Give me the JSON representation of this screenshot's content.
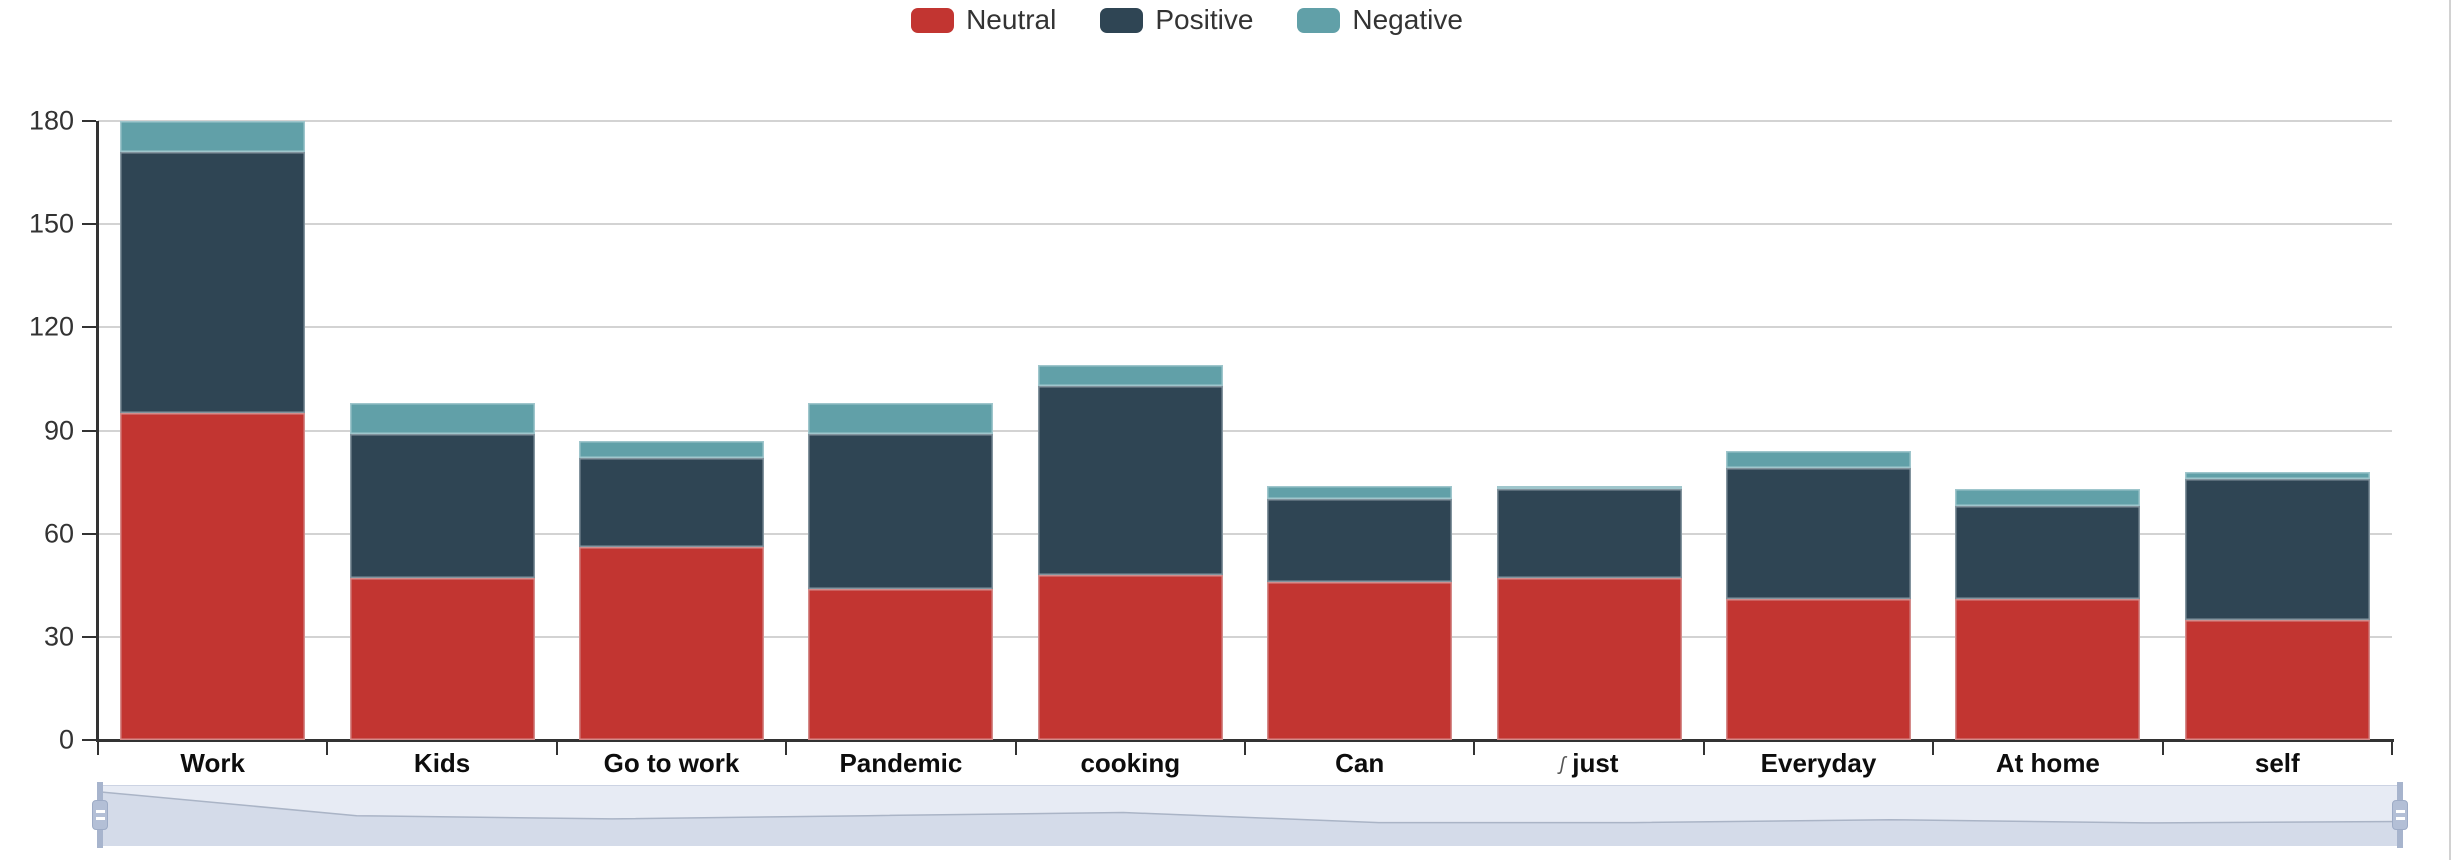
{
  "legend": {
    "items": [
      {
        "label": "Neutral",
        "color": "#c23531"
      },
      {
        "label": "Positive",
        "color": "#2f4554"
      },
      {
        "label": "Negative",
        "color": "#61a0a8"
      }
    ]
  },
  "chart_data": {
    "type": "bar",
    "stacked": true,
    "title": "",
    "xlabel": "",
    "ylabel": "",
    "categories": [
      "Work",
      "Kids",
      "Go to work",
      "Pandemic",
      "cooking",
      "Can",
      "just",
      "Everyday",
      "At home",
      "self"
    ],
    "category_prefixes": {
      "just": "ʃ"
    },
    "series": [
      {
        "name": "Neutral",
        "color": "#c23531",
        "values": [
          95,
          47,
          56,
          44,
          48,
          46,
          47,
          41,
          41,
          35
        ]
      },
      {
        "name": "Positive",
        "color": "#2f4554",
        "values": [
          76,
          42,
          26,
          45,
          55,
          24,
          26,
          38,
          27,
          41
        ]
      },
      {
        "name": "Negative",
        "color": "#61a0a8",
        "values": [
          9,
          9,
          5,
          9,
          6,
          4,
          1,
          5,
          5,
          2
        ]
      }
    ],
    "totals": [
      180,
      98,
      87,
      98,
      109,
      74,
      74,
      84,
      73,
      78
    ],
    "ylim": [
      0,
      180
    ],
    "yticks": [
      0,
      30,
      60,
      90,
      120,
      150,
      180
    ],
    "grid": true,
    "legend_position": "top",
    "datazoom": {
      "visible": true,
      "range": "full",
      "track_color": "#e7ebf4",
      "shadow_fill": "#d4dbe9",
      "shadow_line": "#aab4c6",
      "handle_color": "#a7b4cd"
    }
  }
}
